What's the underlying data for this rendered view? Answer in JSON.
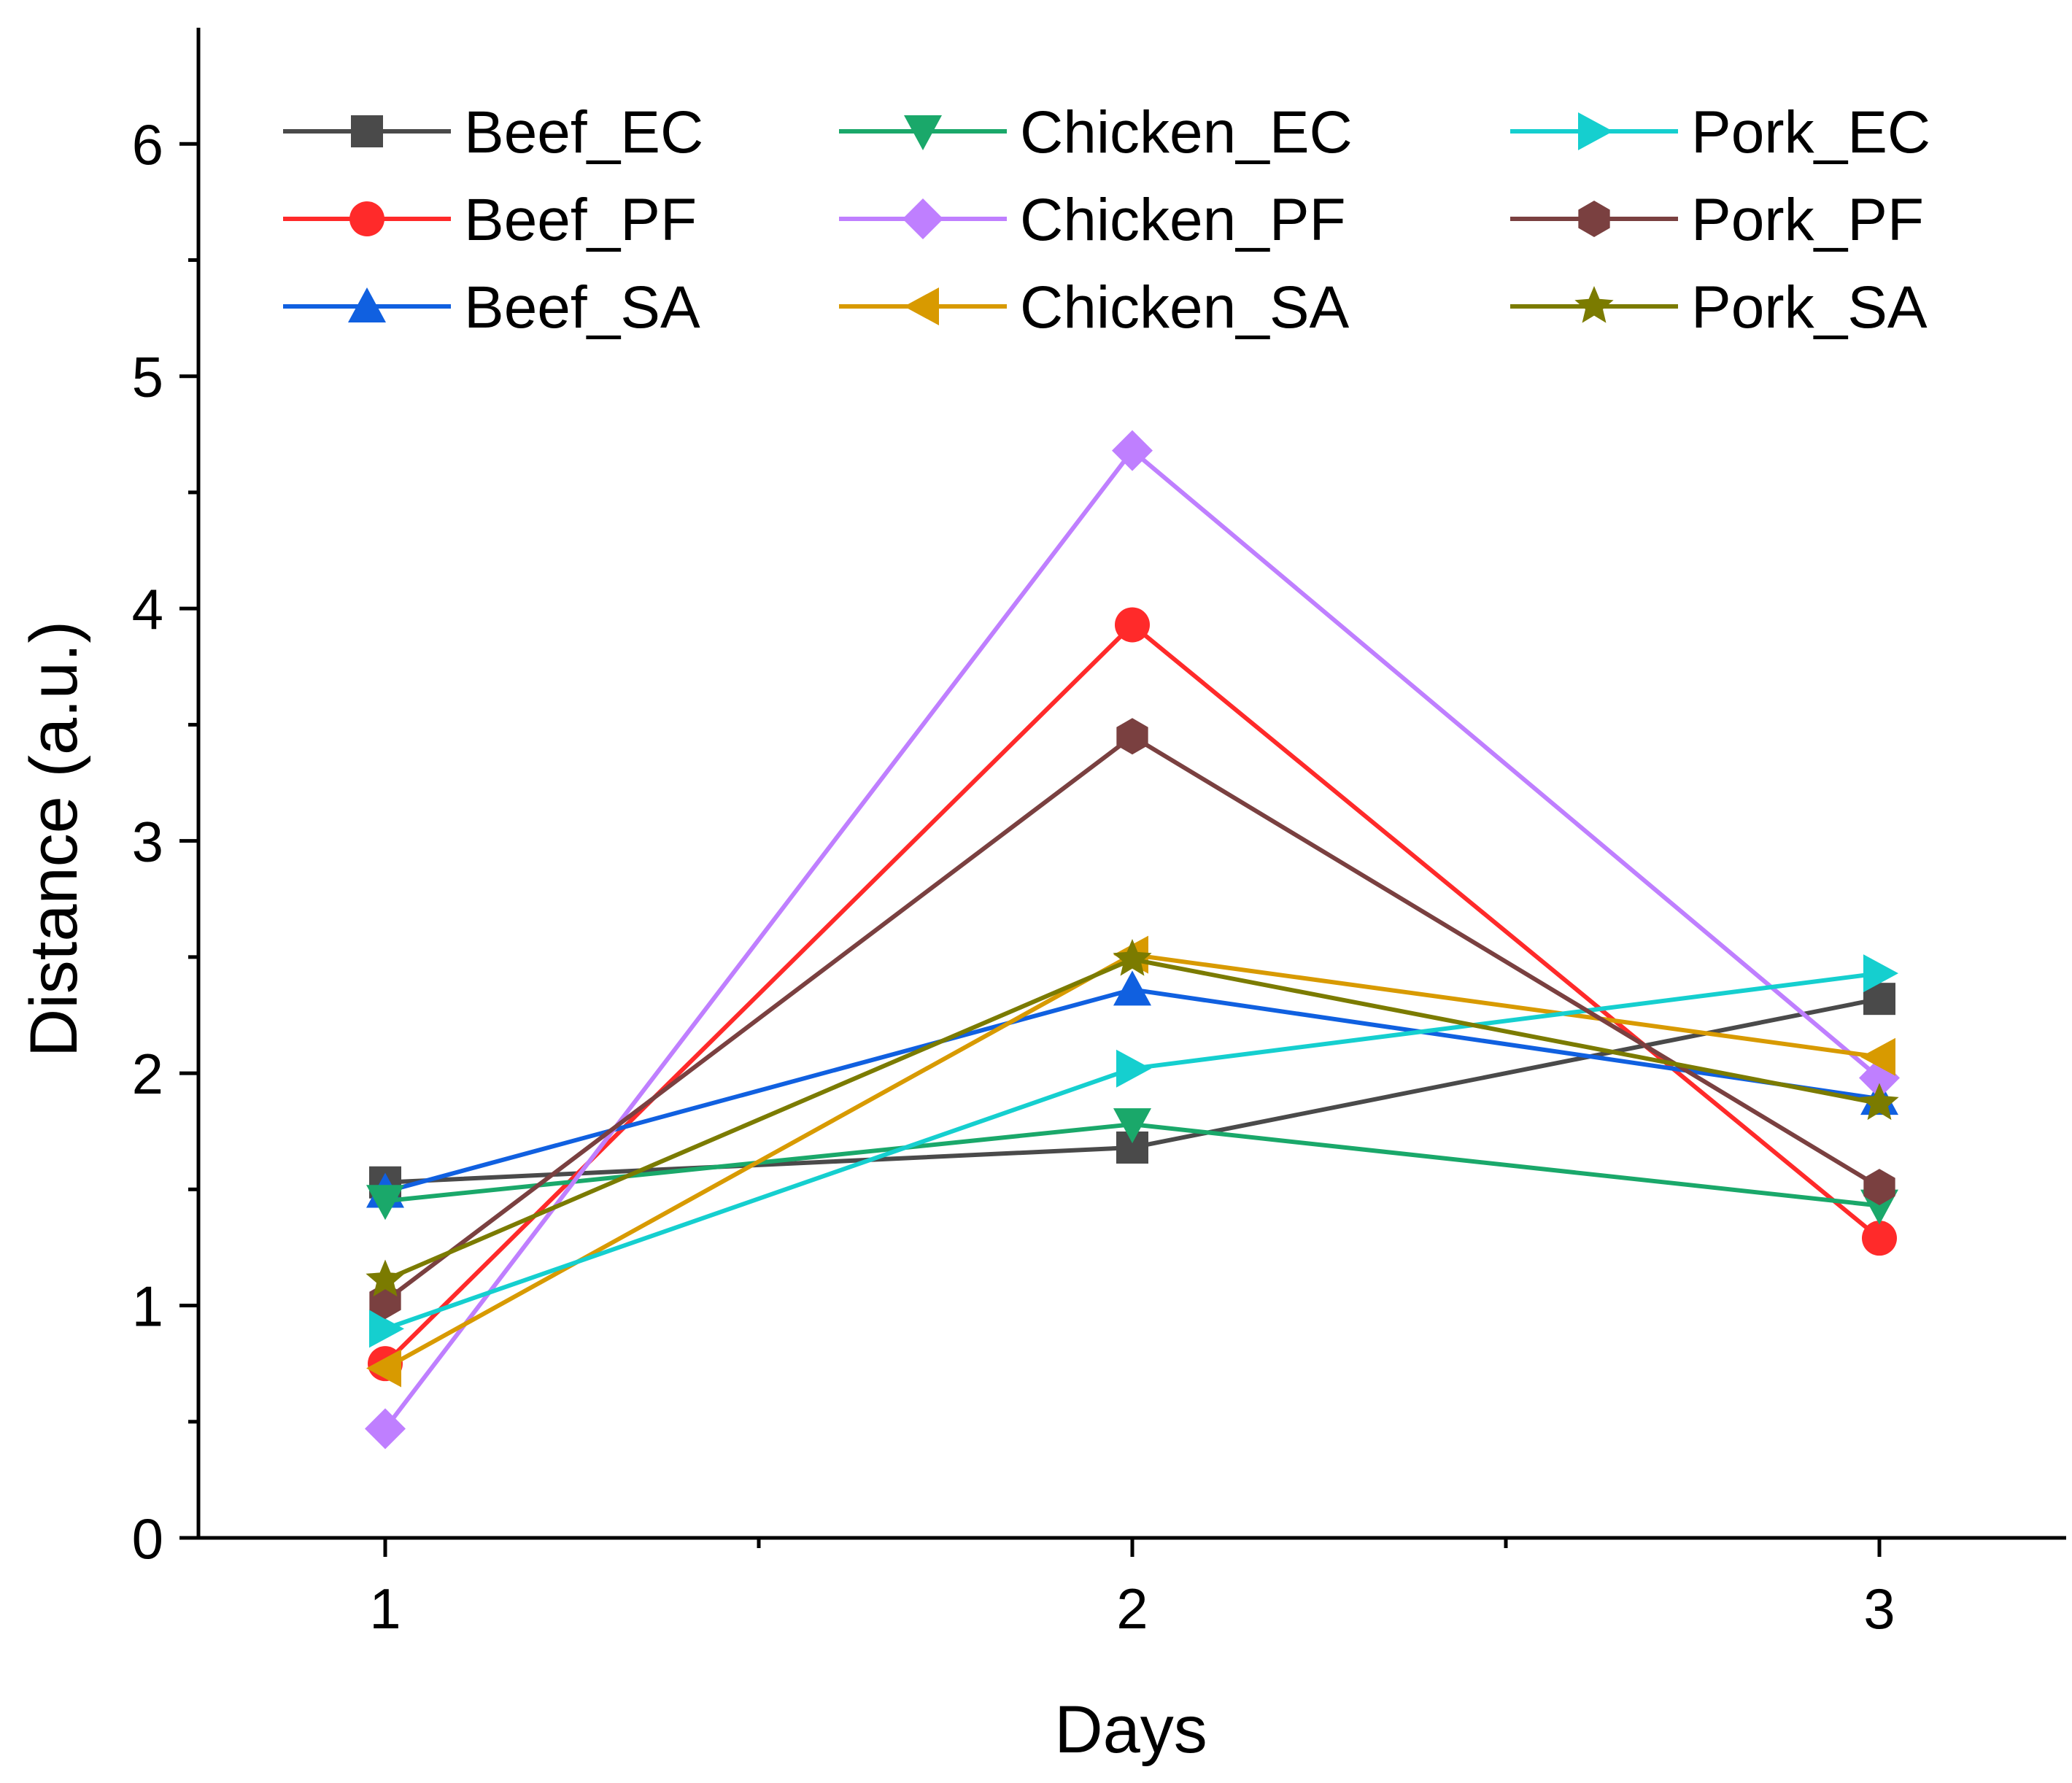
{
  "chart_data": {
    "type": "line",
    "title": "",
    "xlabel": "Days",
    "ylabel": "Distance (a.u.)",
    "x": [
      1,
      2,
      3
    ],
    "xlim": [
      0.75,
      3.25
    ],
    "ylim": [
      0,
      6.5
    ],
    "xticks": [
      1,
      2,
      3
    ],
    "yticks": [
      0,
      1,
      2,
      3,
      4,
      5,
      6
    ],
    "grid": false,
    "legend_position": "top",
    "series": [
      {
        "name": "Beef_EC",
        "color": "#4a4a4a",
        "marker": "square",
        "values": [
          1.53,
          1.68,
          2.32
        ]
      },
      {
        "name": "Beef_PF",
        "color": "#ff2a2a",
        "marker": "circle",
        "values": [
          0.75,
          3.93,
          1.29
        ]
      },
      {
        "name": "Beef_SA",
        "color": "#1060e0",
        "marker": "triangle-up",
        "values": [
          1.49,
          2.36,
          1.89
        ]
      },
      {
        "name": "Chicken_EC",
        "color": "#1aa86a",
        "marker": "triangle-down",
        "values": [
          1.45,
          1.78,
          1.43
        ]
      },
      {
        "name": "Chicken_PF",
        "color": "#bf7fff",
        "marker": "diamond",
        "values": [
          0.47,
          4.68,
          1.98
        ]
      },
      {
        "name": "Chicken_SA",
        "color": "#d89a00",
        "marker": "triangle-left",
        "values": [
          0.73,
          2.51,
          2.07
        ]
      },
      {
        "name": "Pork_EC",
        "color": "#15cfcf",
        "marker": "triangle-right",
        "values": [
          0.9,
          2.02,
          2.43
        ]
      },
      {
        "name": "Pork_PF",
        "color": "#7a4040",
        "marker": "hexagon",
        "values": [
          1.02,
          3.45,
          1.51
        ]
      },
      {
        "name": "Pork_SA",
        "color": "#7b7b00",
        "marker": "star",
        "values": [
          1.11,
          2.49,
          1.87
        ]
      }
    ],
    "legend_layout": [
      [
        "Beef_EC",
        "Chicken_EC",
        "Pork_EC"
      ],
      [
        "Beef_PF",
        "Chicken_PF",
        "Pork_PF"
      ],
      [
        "Beef_SA",
        "Chicken_SA",
        "Pork_SA"
      ]
    ]
  }
}
